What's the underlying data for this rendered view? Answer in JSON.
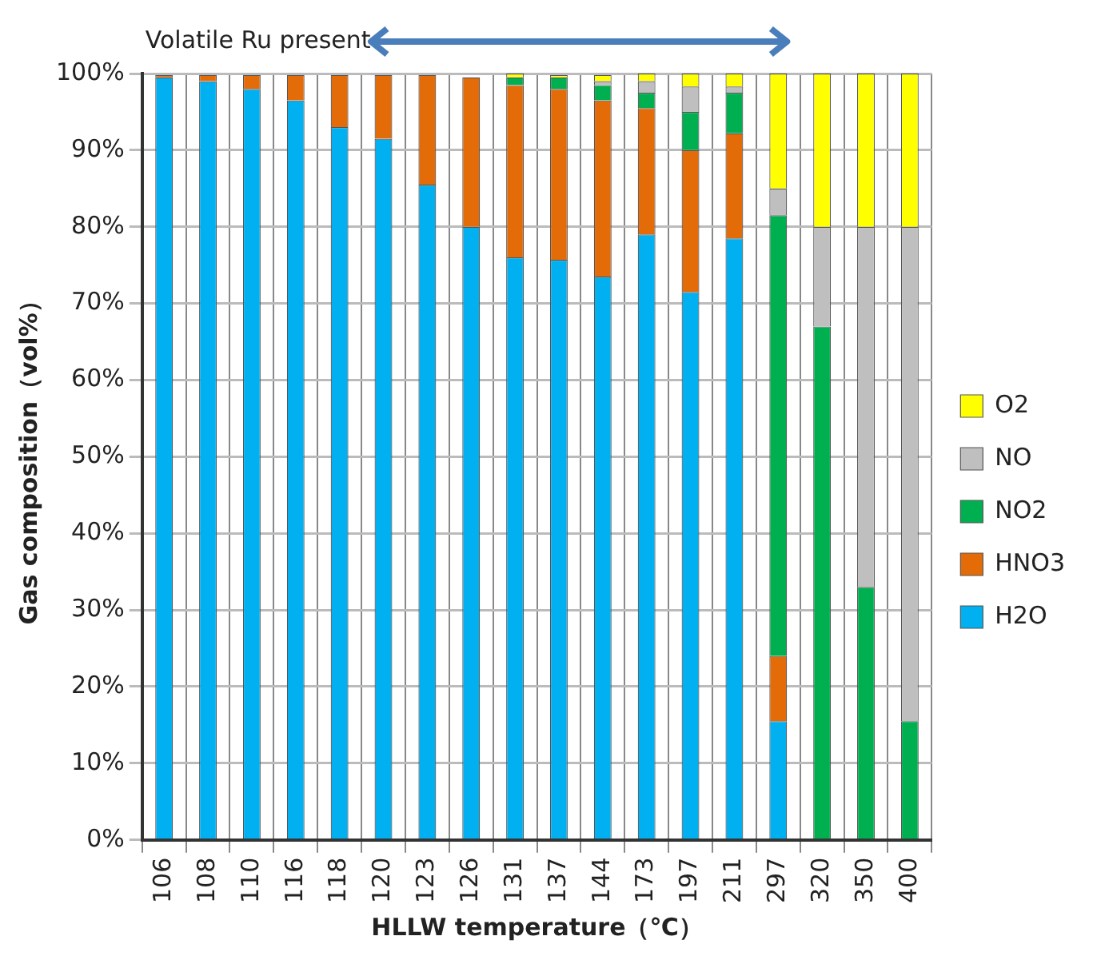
{
  "chart_data": {
    "type": "bar",
    "stacked": true,
    "categories": [
      "106",
      "108",
      "110",
      "116",
      "118",
      "120",
      "123",
      "126",
      "131",
      "137",
      "144",
      "173",
      "197",
      "211",
      "297",
      "320",
      "350",
      "400"
    ],
    "series": [
      {
        "name": "H2O",
        "color": "#00b0f0",
        "values": [
          99.5,
          99,
          98,
          96.5,
          93,
          91.5,
          85.5,
          80,
          76,
          75.7,
          73.5,
          79,
          71.5,
          78.5,
          15.5,
          0,
          0,
          0
        ]
      },
      {
        "name": "HNO3",
        "color": "#e36c09",
        "values": [
          0.3,
          0.8,
          1.8,
          3.3,
          6.8,
          8.3,
          14.3,
          19.5,
          22.5,
          22.3,
          23,
          16.5,
          18.5,
          13.7,
          8.5,
          0,
          0,
          0
        ]
      },
      {
        "name": "NO2",
        "color": "#00b050",
        "values": [
          0,
          0,
          0,
          0,
          0,
          0,
          0,
          0,
          1,
          1.5,
          2,
          2,
          5,
          5.3,
          57.5,
          67,
          33,
          15.5
        ]
      },
      {
        "name": "NO",
        "color": "#bfbfbf",
        "values": [
          0,
          0,
          0,
          0,
          0,
          0,
          0,
          0,
          0,
          0,
          0.5,
          1.5,
          3.3,
          0.8,
          3.5,
          13,
          47,
          64.5
        ]
      },
      {
        "name": "O2",
        "color": "#ffff00",
        "values": [
          0,
          0,
          0,
          0,
          0,
          0,
          0,
          0,
          0.5,
          0.3,
          0.8,
          1,
          1.7,
          1.7,
          15,
          20,
          20,
          20
        ]
      }
    ],
    "xlabel": "HLLW temperature（℃）",
    "ylabel": "Gas composition（vol%）",
    "ylim": [
      0,
      100
    ],
    "yticks": [
      {
        "value": 0,
        "label": "0%"
      },
      {
        "value": 10,
        "label": "10%"
      },
      {
        "value": 20,
        "label": "20%"
      },
      {
        "value": 30,
        "label": "30%"
      },
      {
        "value": 40,
        "label": "40%"
      },
      {
        "value": 50,
        "label": "50%"
      },
      {
        "value": 60,
        "label": "60%"
      },
      {
        "value": 70,
        "label": "70%"
      },
      {
        "value": 80,
        "label": "80%"
      },
      {
        "value": 90,
        "label": "90%"
      },
      {
        "value": 100,
        "label": "100%"
      }
    ],
    "grid": true,
    "legend": "right",
    "annotations": [
      "Volatile Ru present"
    ]
  }
}
